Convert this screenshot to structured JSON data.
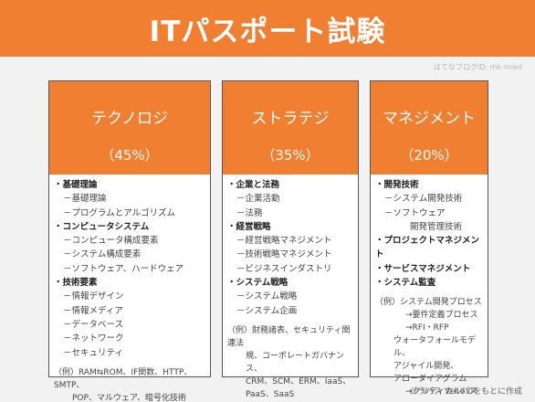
{
  "header": {
    "title": "ITパスポート試験"
  },
  "credit": "はてなブログID: mk-mied",
  "columns": [
    {
      "name": "テクノロジ",
      "percent": "（45%）",
      "categories": [
        {
          "label": "基礎理論",
          "items": [
            "基礎理論",
            "プログラムとアルゴリズム"
          ]
        },
        {
          "label": "コンピュータシステム",
          "items": [
            "コンピュータ構成要素",
            "システム構成要素",
            "ソフトウェア、ハードウェア"
          ]
        },
        {
          "label": "技術要素",
          "items": [
            "情報デザイン",
            "情報メディア",
            "データベース",
            "ネットワーク",
            "セキュリティ"
          ]
        }
      ],
      "example": [
        "（例）RAM⇆ROM、IF関数、HTTP、SMTP、",
        "POP、マルウェア、暗号化技術"
      ]
    },
    {
      "name": "ストラテジ",
      "percent": "（35%）",
      "categories": [
        {
          "label": "企業と法務",
          "items": [
            "企業活動",
            "法務"
          ]
        },
        {
          "label": "経営戦略",
          "items": [
            "経営戦略マネジメント",
            "技術戦略マネジメント",
            "ビジネスインダストリ"
          ]
        },
        {
          "label": "システム戦略",
          "items": [
            "システム戦略",
            "システム企画"
          ]
        }
      ],
      "example": [
        "（例）財務諸表、セキュリティ関連法",
        "規、コーポレートガバナンス、",
        "CRM、SCM、ERM、IaaS、",
        "PaaS、SaaS"
      ]
    },
    {
      "name": "マネジメント",
      "percent": "（20%）",
      "categories": [
        {
          "label": "開発技術",
          "items": [
            "システム開発技術",
            "ソフトウェア"
          ],
          "cont": "開発管理技術"
        },
        {
          "label": "プロジェクトマネジメント",
          "items": []
        },
        {
          "label": "サービスマネジメント",
          "items": []
        },
        {
          "label": "システム監査",
          "items": []
        }
      ],
      "example": [
        "（例）システム開発プロセス",
        "→要件定義プロセス",
        "→RFI・RFP",
        "ウォータフォールモデル、",
        "アジャイル開発、",
        "アローダイアグラム",
        "→クリティカルパス"
      ]
    }
  ],
  "footer": "シラバス Ver.6.0をもとに作成"
}
